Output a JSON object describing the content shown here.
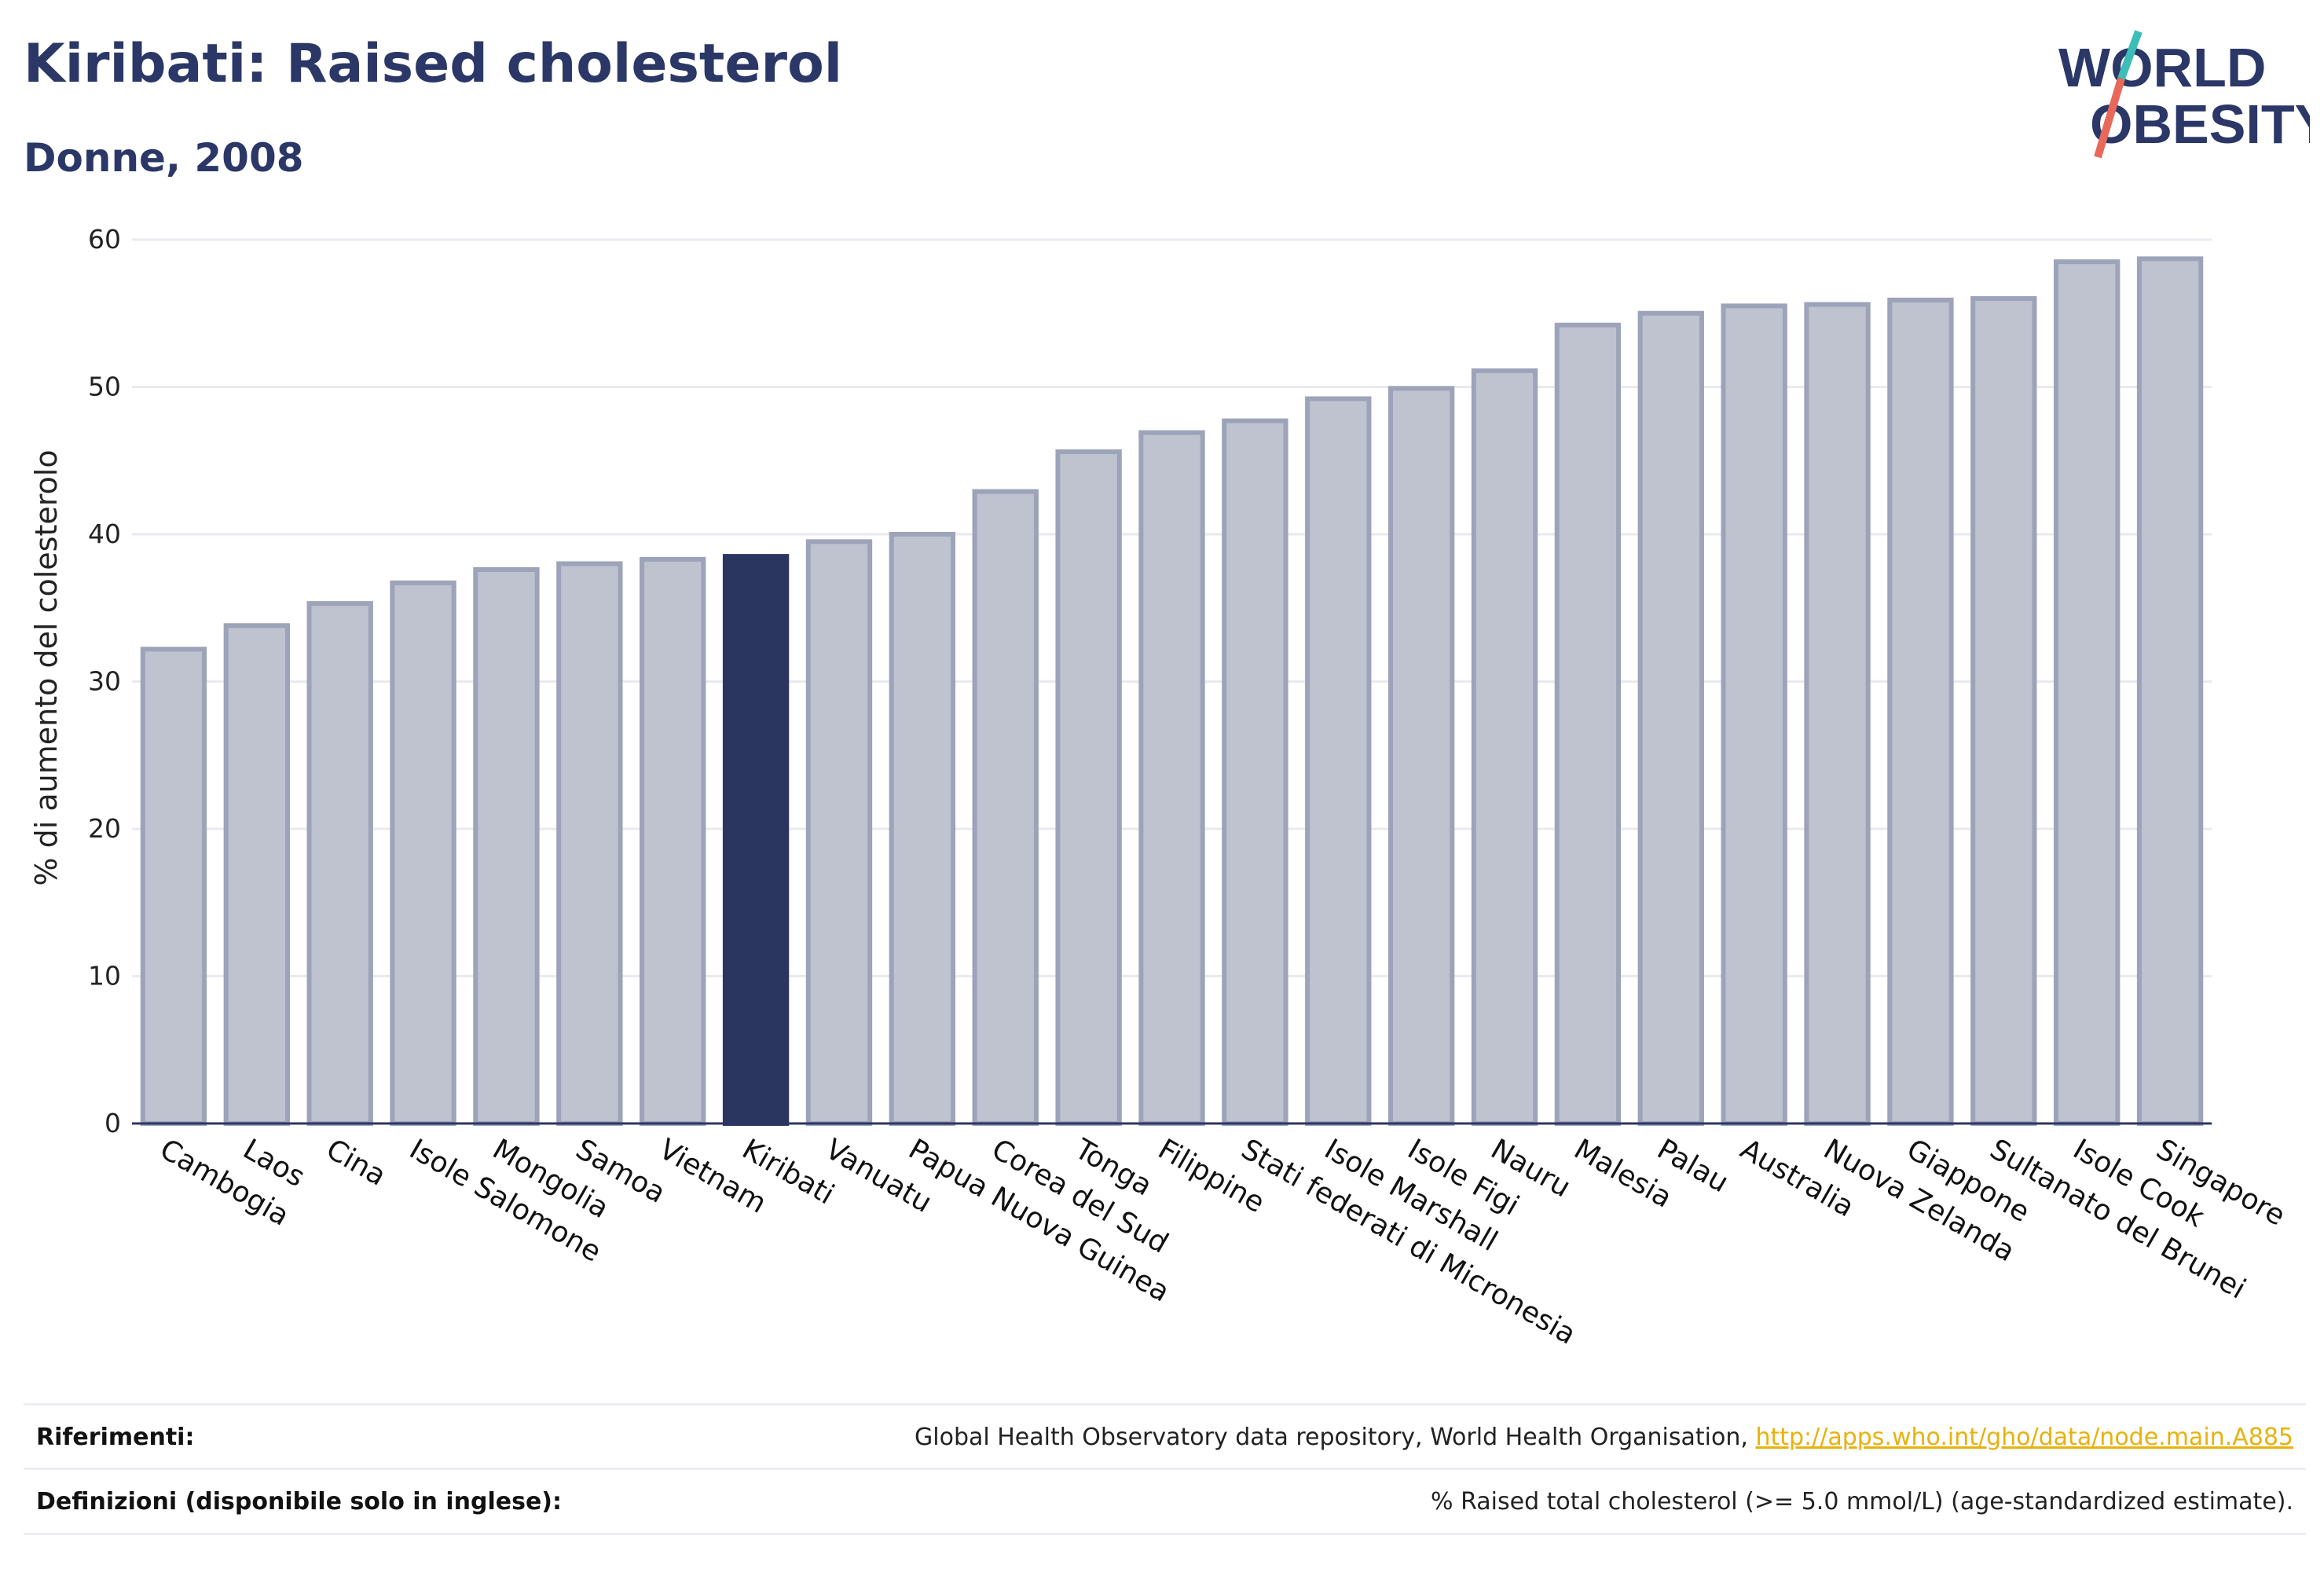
{
  "header": {
    "title": "Kiribati: Raised cholesterol",
    "subtitle": "Donne, 2008"
  },
  "logo": {
    "line1": "WORLD",
    "line2": "OBESITY"
  },
  "colors": {
    "bar": "#bfc2cf",
    "bar_border": "#9da3b8",
    "highlight": "#2b3660",
    "grid": "#e9eaef",
    "axis": "#2b3660"
  },
  "chart_data": {
    "type": "bar",
    "categories": [
      "Cambogia",
      "Laos",
      "Cina",
      "Isole Salomone",
      "Mongolia",
      "Samoa",
      "Vietnam",
      "Kiribati",
      "Vanuatu",
      "Papua Nuova Guinea",
      "Corea del Sud",
      "Tonga",
      "Filippine",
      "Stati federati di Micronesia",
      "Isole Marshall",
      "Isole Figi",
      "Nauru",
      "Malesia",
      "Palau",
      "Australia",
      "Nuova Zelanda",
      "Giappone",
      "Sultanato del Brunei",
      "Isole Cook",
      "Singapore"
    ],
    "values": [
      32.2,
      33.8,
      35.3,
      36.7,
      37.6,
      38.0,
      38.3,
      38.5,
      39.5,
      40.0,
      42.9,
      45.6,
      46.9,
      47.7,
      49.2,
      49.9,
      51.1,
      54.2,
      55.0,
      55.5,
      55.6,
      55.9,
      56.0,
      58.5,
      58.7
    ],
    "highlight": "Kiribati",
    "ylabel": "% di aumento del colesterolo",
    "xlabel": "",
    "ylim": [
      0,
      60
    ],
    "yticks": [
      0,
      10,
      20,
      30,
      40,
      50,
      60
    ],
    "grid": true
  },
  "footer": {
    "references_label": "Riferimenti:",
    "references_text": "Global Health Observatory data repository, World Health Organisation, ",
    "references_link": "http://apps.who.int/gho/data/node.main.A885",
    "definitions_label": "Definizioni (disponibile solo in inglese):",
    "definitions_text": "% Raised total cholesterol (>= 5.0 mmol/L) (age-standardized estimate)."
  }
}
